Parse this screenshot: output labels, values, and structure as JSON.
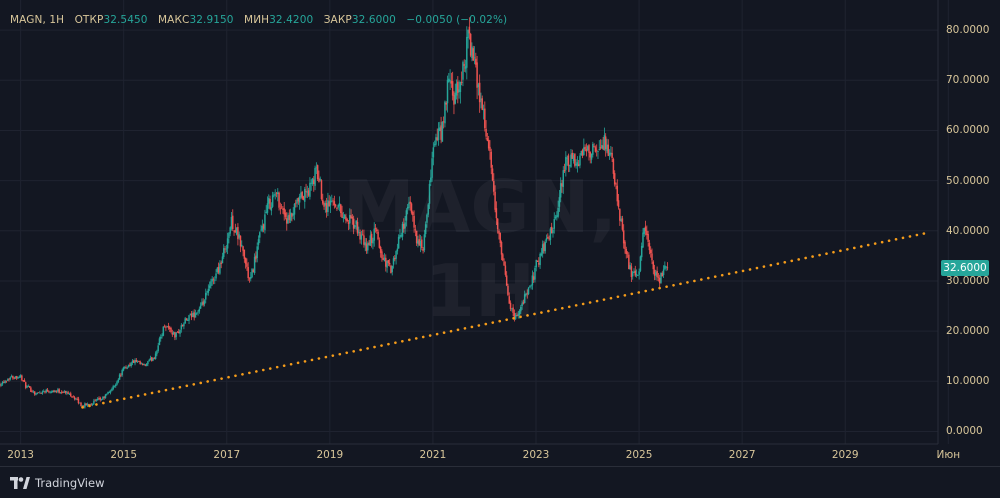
{
  "legend": {
    "symbol_title": "MAGN, 1Н",
    "open_label": "ОТКР",
    "open_value": "32.5450",
    "high_label": "МАКС",
    "high_value": "32.9150",
    "low_label": "МИН",
    "low_value": "32.4200",
    "close_label": "ЗАКР",
    "close_value": "32.6000",
    "change": "−0.0050 (−0.02%)"
  },
  "watermark": "MAGN, 1Н",
  "last_price_label": "32.6000",
  "brand": {
    "name": "TradingView",
    "logo_icon": "tradingview-logo-icon"
  },
  "colors": {
    "background": "#131722",
    "grid": "#1f2330",
    "up": "#26a69a",
    "down": "#ef5350",
    "trendline": "#f59c1a",
    "axis_text": "#d8c69a",
    "last_price_bg": "#26a69a"
  },
  "chart_data": {
    "type": "candlestick",
    "ticker": "MAGN",
    "interval": "1Н",
    "y_ticks": [
      "0.0000",
      "10.0000",
      "20.0000",
      "30.0000",
      "40.0000",
      "50.0000",
      "60.0000",
      "70.0000",
      "80.0000"
    ],
    "y_tick_values": [
      0,
      10,
      20,
      30,
      40,
      50,
      60,
      70,
      80
    ],
    "x_ticks": [
      "2013",
      "2015",
      "2017",
      "2019",
      "2021",
      "2023",
      "2025",
      "2027",
      "2029",
      "Июн"
    ],
    "x_tick_values": [
      2013,
      2015,
      2017,
      2019,
      2021,
      2023,
      2025,
      2027,
      2029,
      2031
    ],
    "x_range": [
      2012.6,
      2030.8
    ],
    "y_range": [
      -2.5,
      86
    ],
    "last_price": 32.6,
    "grid": true,
    "price_path": [
      [
        2012.6,
        9.5
      ],
      [
        2012.8,
        10.8
      ],
      [
        2013.0,
        11.0
      ],
      [
        2013.1,
        9.0
      ],
      [
        2013.3,
        7.5
      ],
      [
        2013.5,
        8.2
      ],
      [
        2013.8,
        8.0
      ],
      [
        2014.0,
        7.2
      ],
      [
        2014.2,
        5.0
      ],
      [
        2014.4,
        5.8
      ],
      [
        2014.6,
        6.6
      ],
      [
        2014.8,
        8.8
      ],
      [
        2015.0,
        12.5
      ],
      [
        2015.2,
        14.0
      ],
      [
        2015.4,
        13.0
      ],
      [
        2015.6,
        15.0
      ],
      [
        2015.8,
        21.5
      ],
      [
        2016.0,
        19.0
      ],
      [
        2016.2,
        22.0
      ],
      [
        2016.5,
        24.5
      ],
      [
        2016.7,
        29.5
      ],
      [
        2016.9,
        34.0
      ],
      [
        2017.0,
        38.0
      ],
      [
        2017.1,
        42.0
      ],
      [
        2017.3,
        36.5
      ],
      [
        2017.45,
        29.5
      ],
      [
        2017.6,
        37.0
      ],
      [
        2017.8,
        45.0
      ],
      [
        2017.95,
        47.5
      ],
      [
        2018.2,
        41.5
      ],
      [
        2018.4,
        46.0
      ],
      [
        2018.6,
        48.0
      ],
      [
        2018.75,
        52.0
      ],
      [
        2018.9,
        45.0
      ],
      [
        2019.1,
        46.0
      ],
      [
        2019.3,
        42.5
      ],
      [
        2019.5,
        41.0
      ],
      [
        2019.7,
        36.5
      ],
      [
        2019.9,
        40.0
      ],
      [
        2020.0,
        35.0
      ],
      [
        2020.2,
        32.0
      ],
      [
        2020.4,
        40.5
      ],
      [
        2020.55,
        45.0
      ],
      [
        2020.7,
        38.0
      ],
      [
        2020.8,
        36.0
      ],
      [
        2020.9,
        43.5
      ],
      [
        2021.0,
        57.0
      ],
      [
        2021.2,
        60.5
      ],
      [
        2021.3,
        70.5
      ],
      [
        2021.4,
        66.0
      ],
      [
        2021.5,
        68.0
      ],
      [
        2021.6,
        73.0
      ],
      [
        2021.7,
        79.0
      ],
      [
        2021.8,
        73.0
      ],
      [
        2021.9,
        68.0
      ],
      [
        2022.0,
        62.0
      ],
      [
        2022.1,
        55.0
      ],
      [
        2022.2,
        45.0
      ],
      [
        2022.3,
        37.0
      ],
      [
        2022.4,
        31.0
      ],
      [
        2022.5,
        25.0
      ],
      [
        2022.6,
        22.5
      ],
      [
        2022.75,
        26.0
      ],
      [
        2022.9,
        29.0
      ],
      [
        2023.0,
        33.0
      ],
      [
        2023.2,
        38.0
      ],
      [
        2023.4,
        42.0
      ],
      [
        2023.5,
        50.0
      ],
      [
        2023.6,
        54.0
      ],
      [
        2023.8,
        53.0
      ],
      [
        2024.0,
        57.0
      ],
      [
        2024.2,
        55.0
      ],
      [
        2024.35,
        58.0
      ],
      [
        2024.5,
        52.0
      ],
      [
        2024.6,
        44.0
      ],
      [
        2024.75,
        36.0
      ],
      [
        2024.85,
        31.0
      ],
      [
        2025.0,
        31.5
      ],
      [
        2025.1,
        41.0
      ],
      [
        2025.2,
        36.0
      ],
      [
        2025.3,
        31.0
      ],
      [
        2025.4,
        30.0
      ],
      [
        2025.5,
        33.0
      ],
      [
        2025.55,
        32.6
      ]
    ],
    "trendline": {
      "start": [
        2014.2,
        4.8
      ],
      "end": [
        2030.6,
        39.6
      ],
      "style": "dotted"
    }
  }
}
